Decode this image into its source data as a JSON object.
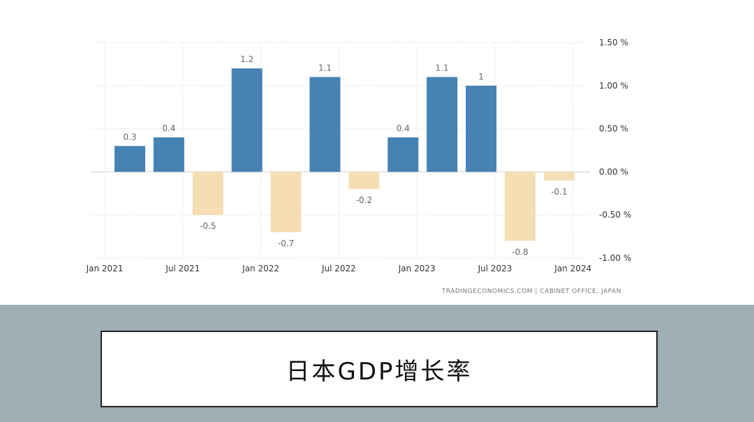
{
  "caption": "日本GDP增长率",
  "source": "TRADINGECONOMICS.COM  |  CABINET OFFICE, JAPAN",
  "chart_data": {
    "type": "bar",
    "title": "",
    "xlabel": "",
    "ylabel": "",
    "categories": [
      "Q1 2021",
      "Q2 2021",
      "Q3 2021",
      "Q4 2021",
      "Q1 2022",
      "Q2 2022",
      "Q3 2022",
      "Q4 2022",
      "Q1 2023",
      "Q2 2023",
      "Q3 2023",
      "Q4 2023"
    ],
    "values": [
      0.3,
      0.4,
      -0.5,
      1.2,
      -0.7,
      1.1,
      -0.2,
      0.4,
      1.1,
      1.0,
      -0.8,
      -0.1
    ],
    "value_labels": [
      "0.3",
      "0.4",
      "-0.5",
      "1.2",
      "-0.7",
      "1.1",
      "-0.2",
      "0.4",
      "1.1",
      "1",
      "-0.8",
      "-0.1"
    ],
    "ylim": [
      -1.0,
      1.5
    ],
    "y_ticks": [
      1.5,
      1.0,
      0.5,
      0.0,
      -0.5,
      -1.0
    ],
    "y_tick_labels": [
      "1.50 %",
      "1.00 %",
      "0.50 %",
      "0.00 %",
      "-0.50 %",
      "-1.00 %"
    ],
    "x_tick_labels": [
      "Jan 2021",
      "Jul 2021",
      "Jan 2022",
      "Jul 2022",
      "Jan 2023",
      "Jul 2023",
      "Jan 2024"
    ],
    "positive_color": "#4682b4",
    "negative_color": "#f5deb3",
    "grid": true,
    "y_axis_position": "right",
    "legend": "none"
  }
}
